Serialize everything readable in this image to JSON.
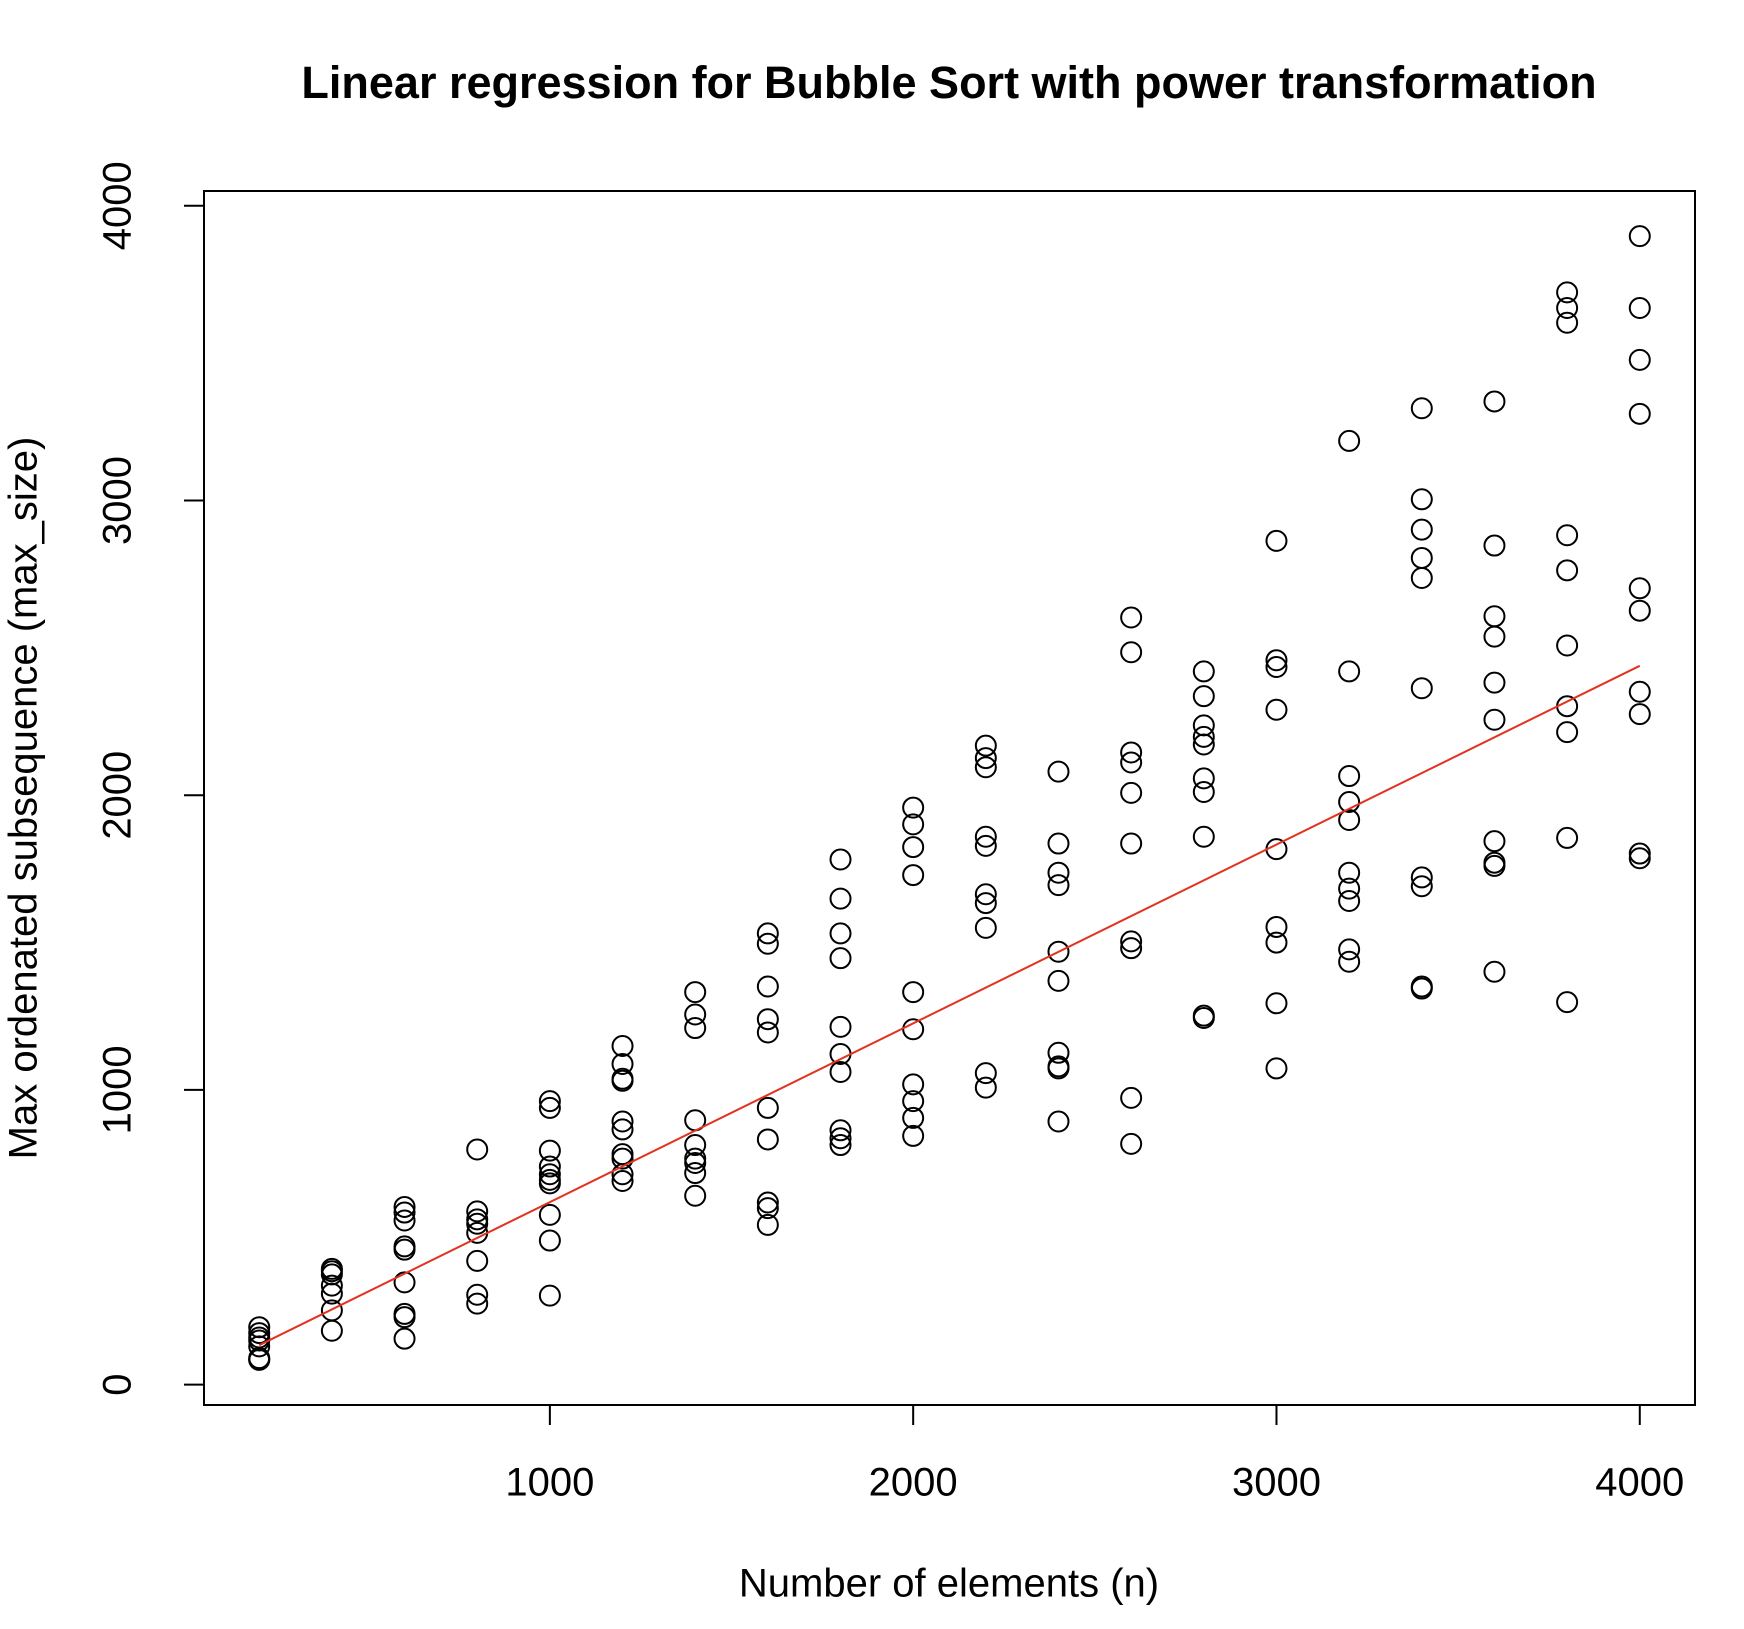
{
  "chart_data": {
    "type": "scatter",
    "title": "Linear regression for Bubble Sort with power transformation",
    "x_label": "Number of elements (n)",
    "y_label": "Max ordenated subsequence (max_size)",
    "xlim": [
      48,
      4152
    ],
    "ylim": [
      -69,
      4050
    ],
    "xticks": [
      1000,
      2000,
      3000,
      4000
    ],
    "yticks": [
      0,
      1000,
      2000,
      3000,
      4000
    ],
    "color": "#000000",
    "x": [
      200,
      200,
      200,
      200,
      200,
      200,
      200,
      200,
      400,
      400,
      400,
      400,
      400,
      400,
      400,
      600,
      600,
      600,
      600,
      600,
      600,
      600,
      600,
      600,
      800,
      800,
      800,
      800,
      800,
      800,
      800,
      800,
      1000,
      1000,
      1000,
      1000,
      1000,
      1000,
      1000,
      1000,
      1000,
      1000,
      1200,
      1200,
      1200,
      1200,
      1200,
      1200,
      1200,
      1200,
      1200,
      1200,
      1400,
      1400,
      1400,
      1400,
      1400,
      1400,
      1400,
      1400,
      1400,
      1600,
      1600,
      1600,
      1600,
      1600,
      1600,
      1600,
      1600,
      1600,
      1600,
      1800,
      1800,
      1800,
      1800,
      1800,
      1800,
      1800,
      1800,
      1800,
      1800,
      2000,
      2000,
      2000,
      2000,
      2000,
      2000,
      2000,
      2000,
      2000,
      2000,
      2200,
      2200,
      2200,
      2200,
      2200,
      2200,
      2200,
      2200,
      2200,
      2200,
      2400,
      2400,
      2400,
      2400,
      2400,
      2400,
      2400,
      2400,
      2400,
      2400,
      2600,
      2600,
      2600,
      2600,
      2600,
      2600,
      2600,
      2600,
      2600,
      2600,
      2800,
      2800,
      2800,
      2800,
      2800,
      2800,
      2800,
      2800,
      2800,
      2800,
      3000,
      3000,
      3000,
      3000,
      3000,
      3000,
      3000,
      3000,
      3000,
      3200,
      3200,
      3200,
      3200,
      3200,
      3200,
      3200,
      3200,
      3200,
      3200,
      3400,
      3400,
      3400,
      3400,
      3400,
      3400,
      3400,
      3400,
      3400,
      3400,
      3600,
      3600,
      3600,
      3600,
      3600,
      3600,
      3600,
      3600,
      3600,
      3600,
      3800,
      3800,
      3800,
      3800,
      3800,
      3800,
      3800,
      3800,
      3800,
      3800,
      4000,
      4000,
      4000,
      4000,
      4000,
      4000,
      4000,
      4000,
      4000,
      4000
    ],
    "values": [
      195,
      175,
      160,
      150,
      130,
      90,
      85,
      84,
      393,
      385,
      374,
      336,
      309,
      252,
      183,
      603,
      584,
      557,
      469,
      458,
      347,
      240,
      229,
      156,
      798,
      588,
      561,
      546,
      515,
      420,
      305,
      275,
      962,
      939,
      794,
      740,
      714,
      695,
      683,
      576,
      489,
      302,
      1149,
      1088,
      1038,
      1031,
      893,
      866,
      782,
      767,
      714,
      691,
      1332,
      1256,
      1210,
      897,
      813,
      767,
      752,
      718,
      641,
      1531,
      1496,
      1351,
      1240,
      1195,
      939,
      832,
      618,
      599,
      542,
      1782,
      1649,
      1531,
      1447,
      1214,
      1122,
      1061,
      863,
      836,
      813,
      1958,
      1901,
      1824,
      1729,
      1332,
      1206,
      1019,
      962,
      905,
      844,
      2168,
      2126,
      2095,
      1859,
      1828,
      1664,
      1634,
      1550,
      1057,
      1008,
      2080,
      1836,
      1737,
      1695,
      1469,
      1370,
      1126,
      1080,
      1073,
      893,
      2603,
      2485,
      2145,
      2111,
      2008,
      1836,
      1504,
      1481,
      973,
      817,
      2420,
      2336,
      2237,
      2198,
      2172,
      2057,
      2011,
      1859,
      1252,
      1244,
      2863,
      2458,
      2435,
      2290,
      1817,
      1553,
      1500,
      1294,
      1073,
      3202,
      2420,
      2065,
      1977,
      1916,
      1737,
      1683,
      1641,
      1477,
      1435,
      3313,
      3004,
      2901,
      2805,
      2737,
      2363,
      1721,
      1691,
      1351,
      1344,
      3336,
      2847,
      2607,
      2538,
      2382,
      2256,
      1844,
      1771,
      1760,
      1401,
      3706,
      3653,
      3603,
      2882,
      2763,
      2508,
      2302,
      2214,
      1855,
      1298,
      3897,
      3653,
      3477,
      3294,
      2702,
      2626,
      2351,
      2275,
      1802,
      1786
    ],
    "fit": {
      "x": [
        200,
        4000
      ],
      "values": [
        134,
        2439
      ],
      "color": "#e3321f"
    }
  }
}
